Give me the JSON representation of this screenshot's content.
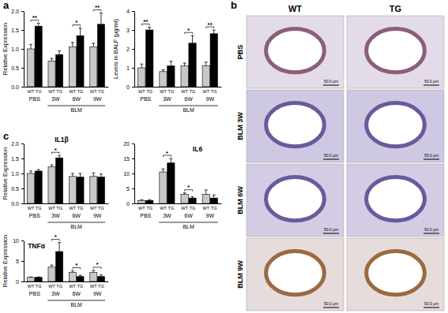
{
  "chart_data": [
    {
      "type": "bar",
      "y_label": "Relative Expression",
      "categories": [
        "PBS",
        "3W",
        "6W",
        "9W"
      ],
      "group": {
        "label": "BLM",
        "categories": [
          "3W",
          "6W",
          "9W"
        ]
      },
      "series": [
        {
          "name": "WT",
          "color": "#c8c8c8",
          "values": [
            1.0,
            0.68,
            1.05,
            1.05
          ],
          "errors": [
            0.12,
            0.07,
            0.12,
            0.1
          ]
        },
        {
          "name": "TG",
          "color": "#000000",
          "values": [
            1.6,
            0.85,
            1.35,
            1.65
          ],
          "errors": [
            0.08,
            0.1,
            0.2,
            0.3
          ]
        }
      ],
      "ylim": [
        0,
        2
      ],
      "yticks": [
        {
          "value": 0,
          "label": "0.0"
        },
        {
          "value": 0.5,
          "label": "0.5"
        },
        {
          "value": 1,
          "label": "1.0"
        },
        {
          "value": 1.5,
          "label": "1.5"
        },
        {
          "value": 2,
          "label": "2.0"
        }
      ],
      "significance": [
        {
          "category": "PBS",
          "text": "**"
        },
        {
          "category": "6W",
          "text": "*"
        },
        {
          "category": "9W",
          "text": "**"
        }
      ]
    },
    {
      "type": "bar",
      "y_label": "Levels in BALF (µg/ml)",
      "categories": [
        "PBS",
        "3W",
        "6W",
        "9W"
      ],
      "group": {
        "label": "BLM",
        "categories": [
          "3W",
          "6W",
          "9W"
        ]
      },
      "series": [
        {
          "name": "WT",
          "color": "#c8c8c8",
          "values": [
            1.0,
            0.8,
            1.1,
            1.1
          ],
          "errors": [
            0.2,
            0.1,
            0.15,
            0.2
          ]
        },
        {
          "name": "TG",
          "color": "#000000",
          "values": [
            3.0,
            1.1,
            2.3,
            2.8
          ],
          "errors": [
            0.15,
            0.25,
            0.4,
            0.2
          ]
        }
      ],
      "ylim": [
        0,
        4
      ],
      "yticks": [
        0,
        1,
        2,
        3,
        4
      ],
      "significance": [
        {
          "category": "PBS",
          "text": "**"
        },
        {
          "category": "6W",
          "text": "*"
        },
        {
          "category": "9W",
          "text": "**"
        }
      ]
    },
    {
      "type": "bar",
      "title": "IL1β",
      "y_label": "Relative Expression",
      "categories": [
        "PBS",
        "3W",
        "6W",
        "9W"
      ],
      "group": {
        "label": "BLM",
        "categories": [
          "3W",
          "6W",
          "9W"
        ]
      },
      "series": [
        {
          "name": "WT",
          "color": "#c8c8c8",
          "values": [
            1.0,
            1.22,
            0.9,
            0.9
          ],
          "errors": [
            0.08,
            0.07,
            0.1,
            0.12
          ]
        },
        {
          "name": "TG",
          "color": "#000000",
          "values": [
            1.08,
            1.52,
            0.88,
            0.88
          ],
          "errors": [
            0.05,
            0.08,
            0.12,
            0.1
          ]
        }
      ],
      "ylim": [
        0,
        2
      ],
      "yticks": [
        {
          "value": 0,
          "label": "0.0"
        },
        {
          "value": 0.5,
          "label": "0.5"
        },
        {
          "value": 1,
          "label": "1.0"
        },
        {
          "value": 1.5,
          "label": "1.5"
        },
        {
          "value": 2,
          "label": "2.0"
        }
      ],
      "significance": [
        {
          "category": "3W",
          "text": "*"
        }
      ]
    },
    {
      "type": "bar",
      "title": "IL6",
      "categories": [
        "PBS",
        "3W",
        "6W",
        "9W"
      ],
      "group": {
        "label": "BLM",
        "categories": [
          "3W",
          "6W",
          "9W"
        ]
      },
      "series": [
        {
          "name": "WT",
          "color": "#c8c8c8",
          "values": [
            1.0,
            10.5,
            3.0,
            3.0
          ],
          "errors": [
            0.2,
            1.0,
            0.5,
            1.5
          ]
        },
        {
          "name": "TG",
          "color": "#000000",
          "values": [
            1.0,
            13.5,
            1.8,
            1.8
          ],
          "errors": [
            0.2,
            1.5,
            0.4,
            1.0
          ]
        }
      ],
      "ylim": [
        0,
        20
      ],
      "yticks": [
        0,
        5,
        10,
        15,
        20
      ],
      "significance": [
        {
          "category": "3W",
          "text": "*"
        },
        {
          "category": "6W",
          "text": "*"
        }
      ]
    },
    {
      "type": "bar",
      "title": "TNFα",
      "y_label": "Relative Expression",
      "categories": [
        "PBS",
        "3W",
        "6W",
        "9W"
      ],
      "group": {
        "label": "BLM",
        "categories": [
          "3W",
          "6W",
          "9W"
        ]
      },
      "series": [
        {
          "name": "WT",
          "color": "#c8c8c8",
          "values": [
            1.0,
            3.5,
            2.2,
            2.2
          ],
          "errors": [
            0.1,
            0.5,
            0.4,
            0.5
          ]
        },
        {
          "name": "TG",
          "color": "#000000",
          "values": [
            1.0,
            7.3,
            1.2,
            1.2
          ],
          "errors": [
            0.1,
            2.2,
            0.3,
            0.4
          ]
        }
      ],
      "ylim": [
        0,
        10
      ],
      "yticks": [
        0,
        5,
        10
      ],
      "significance": [
        {
          "category": "3W",
          "text": "*"
        },
        {
          "category": "6W",
          "text": "*"
        },
        {
          "category": "9W",
          "text": "*"
        }
      ]
    }
  ],
  "panel_labels": [
    "a",
    "b",
    "c"
  ],
  "micrographs": {
    "columns": [
      "WT",
      "TG"
    ],
    "rows": [
      "PBS",
      "BLM 3W",
      "BLM 6W",
      "BLM 9W"
    ],
    "scale_bar": "50.0 µm"
  }
}
